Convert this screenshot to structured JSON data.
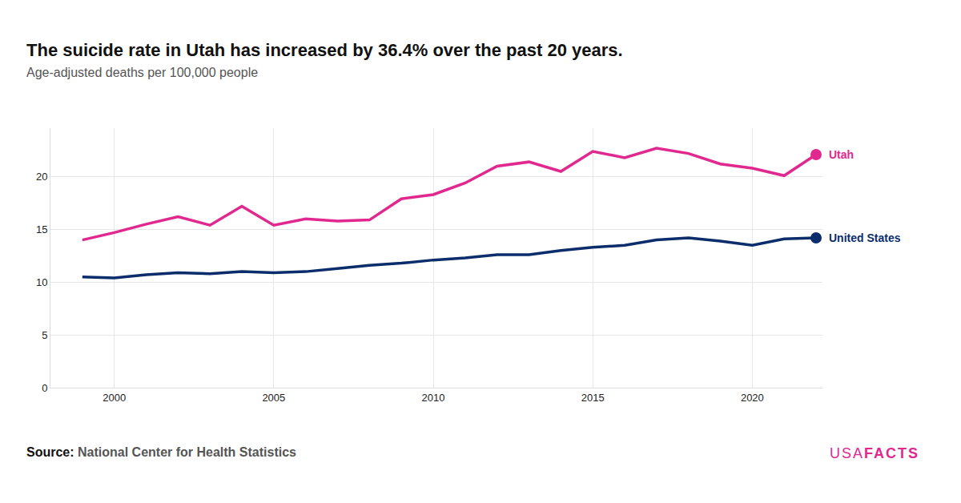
{
  "chart_data": {
    "type": "line",
    "title": "The suicide rate in Utah has increased by 36.4% over the past 20 years.",
    "subtitle": "Age-adjusted deaths per 100,000 people",
    "source_label": "Source:",
    "source": "National Center for Health Statistics",
    "brand": "USAFACTS",
    "x": [
      1999,
      2000,
      2001,
      2002,
      2003,
      2004,
      2005,
      2006,
      2007,
      2008,
      2009,
      2010,
      2011,
      2012,
      2013,
      2014,
      2015,
      2016,
      2017,
      2018,
      2019,
      2020,
      2021,
      2022
    ],
    "series": [
      {
        "name": "Utah",
        "color": "#e0288f",
        "marker": "circle",
        "line_style": "solid",
        "values": [
          14.0,
          14.7,
          15.5,
          16.2,
          15.4,
          17.2,
          15.4,
          16.0,
          15.8,
          15.9,
          17.9,
          18.3,
          19.4,
          21.0,
          21.4,
          20.5,
          22.4,
          21.8,
          22.7,
          22.2,
          21.2,
          20.8,
          20.1,
          22.1
        ]
      },
      {
        "name": "United States",
        "color": "#0b2d6b",
        "marker": "circle",
        "line_style": "solid",
        "values": [
          10.5,
          10.4,
          10.7,
          10.9,
          10.8,
          11.0,
          10.9,
          11.0,
          11.3,
          11.6,
          11.8,
          12.1,
          12.3,
          12.6,
          12.6,
          13.0,
          13.3,
          13.5,
          14.0,
          14.2,
          13.9,
          13.5,
          14.1,
          14.2
        ]
      }
    ],
    "xlim": [
      1998,
      2022.2
    ],
    "xticks": [
      2000,
      2005,
      2010,
      2015,
      2020
    ],
    "ylim": [
      0,
      24.6
    ],
    "yticks": [
      0,
      5,
      10,
      15,
      20
    ],
    "grid": true
  }
}
